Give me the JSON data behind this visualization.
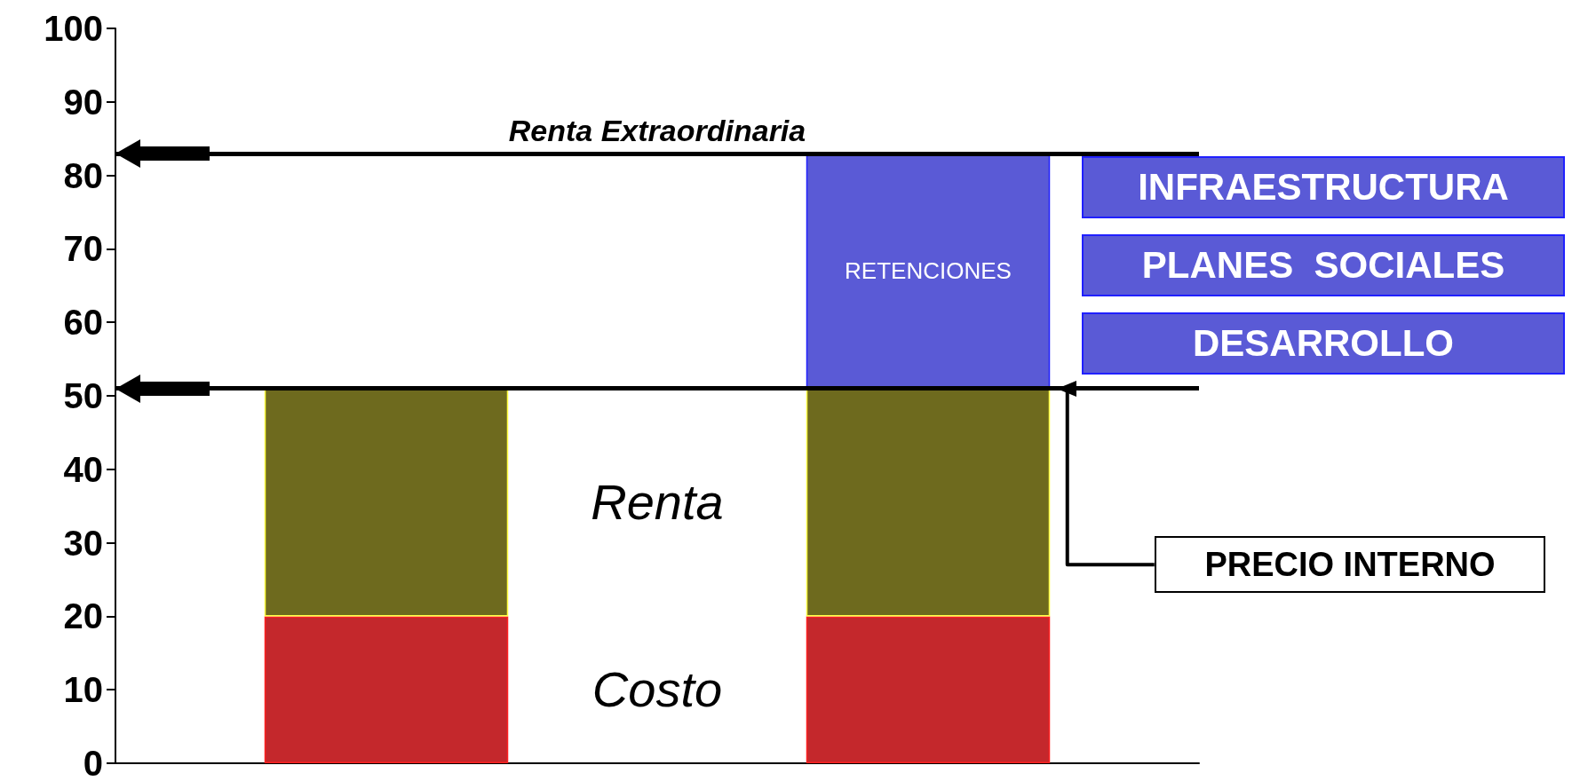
{
  "chart_data": {
    "type": "bar",
    "stacked": true,
    "categories": [
      null,
      null
    ],
    "series": [
      {
        "color": "#c4282c",
        "values": [
          20,
          20
        ]
      },
      {
        "color": "#6e6a1e",
        "values": [
          31,
          31
        ]
      },
      {
        "name": "RETENCIONES",
        "color": "#5a5ad6",
        "values": [
          null,
          32
        ]
      }
    ],
    "ylim": [
      0,
      100
    ],
    "yticks": [
      0,
      10,
      20,
      30,
      40,
      50,
      60,
      70,
      80,
      90,
      100
    ],
    "grid": false,
    "legend": false,
    "ref_lines": [
      {
        "axis": "y",
        "value": 51,
        "color": "#000000"
      },
      {
        "axis": "y",
        "value": 83,
        "label": "Renta Extraordinaria",
        "color": "#000000"
      }
    ],
    "annotations": [
      "Costo",
      "Renta",
      "INFRAESTRUCTURA",
      "PLANES  SOCIALES",
      "DESARROLLO",
      "PRECIO INTERNO"
    ]
  }
}
